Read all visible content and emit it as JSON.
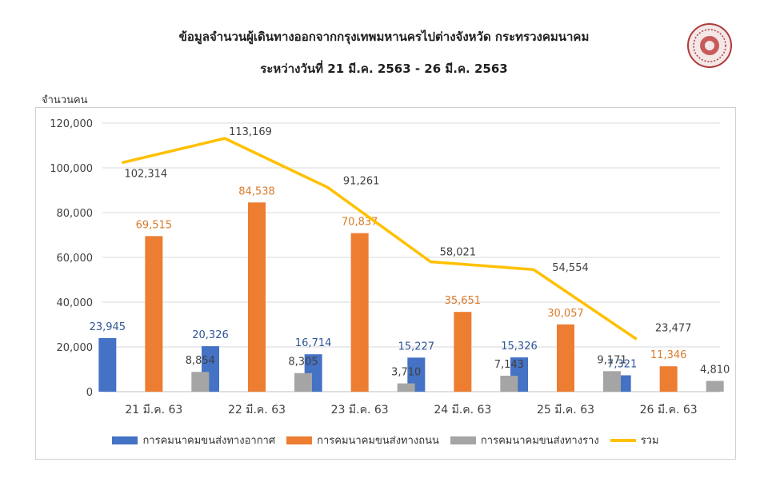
{
  "header": {
    "title_line1": "ข้อมูลจำนวนผู้เดินทางออกจากกรุงเทพมหานครไปต่างจังหวัด กระทรวงคมนาคม",
    "title_line2": "ระหว่างวันที่ 21 มี.ค. 2563 - 26 มี.ค. 2563",
    "logo_icon": "ministry-seal-icon"
  },
  "chart_data": {
    "type": "bar",
    "ylabel": "จำนวนคน",
    "ylim": [
      0,
      120000
    ],
    "yticks": [
      "0",
      "20,000",
      "40,000",
      "60,000",
      "80,000",
      "100,000",
      "120,000"
    ],
    "ytick_values": [
      0,
      20000,
      40000,
      60000,
      80000,
      100000,
      120000
    ],
    "grid": true,
    "legend_position": "bottom",
    "categories": [
      "21 มี.ค. 63",
      "22 มี.ค. 63",
      "23 มี.ค. 63",
      "24 มี.ค. 63",
      "25 มี.ค. 63",
      "26 มี.ค. 63"
    ],
    "series": [
      {
        "name": "การคมนาคมขนส่งทางอากาศ",
        "kind": "bar",
        "color": "#4472C4",
        "label_color": "#2F5597",
        "values": [
          23945,
          20326,
          16714,
          15227,
          15326,
          7321
        ],
        "labels": [
          "23,945",
          "20,326",
          "16,714",
          "15,227",
          "15,326",
          "7,321"
        ]
      },
      {
        "name": "การคมนาคมขนส่งทางถนน",
        "kind": "bar",
        "color": "#ED7D31",
        "label_color": "#D97B2B",
        "values": [
          69515,
          84538,
          70837,
          35651,
          30057,
          11346
        ],
        "labels": [
          "69,515",
          "84,538",
          "70,837",
          "35,651",
          "30,057",
          "11,346"
        ]
      },
      {
        "name": "การคมนาคมขนส่งทางราง",
        "kind": "bar",
        "color": "#A5A5A5",
        "label_color": "#404040",
        "values": [
          8854,
          8305,
          3710,
          7143,
          9171,
          4810
        ],
        "labels": [
          "8,854",
          "8,305",
          "3,710",
          "7,143",
          "9,171",
          "4,810"
        ]
      },
      {
        "name": "รวม",
        "kind": "line",
        "color": "#FFC000",
        "label_color": "#404040",
        "values": [
          102314,
          113169,
          91261,
          58021,
          54554,
          23477
        ],
        "labels": [
          "102,314",
          "113,169",
          "91,261",
          "58,021",
          "54,554",
          "23,477"
        ]
      }
    ]
  }
}
